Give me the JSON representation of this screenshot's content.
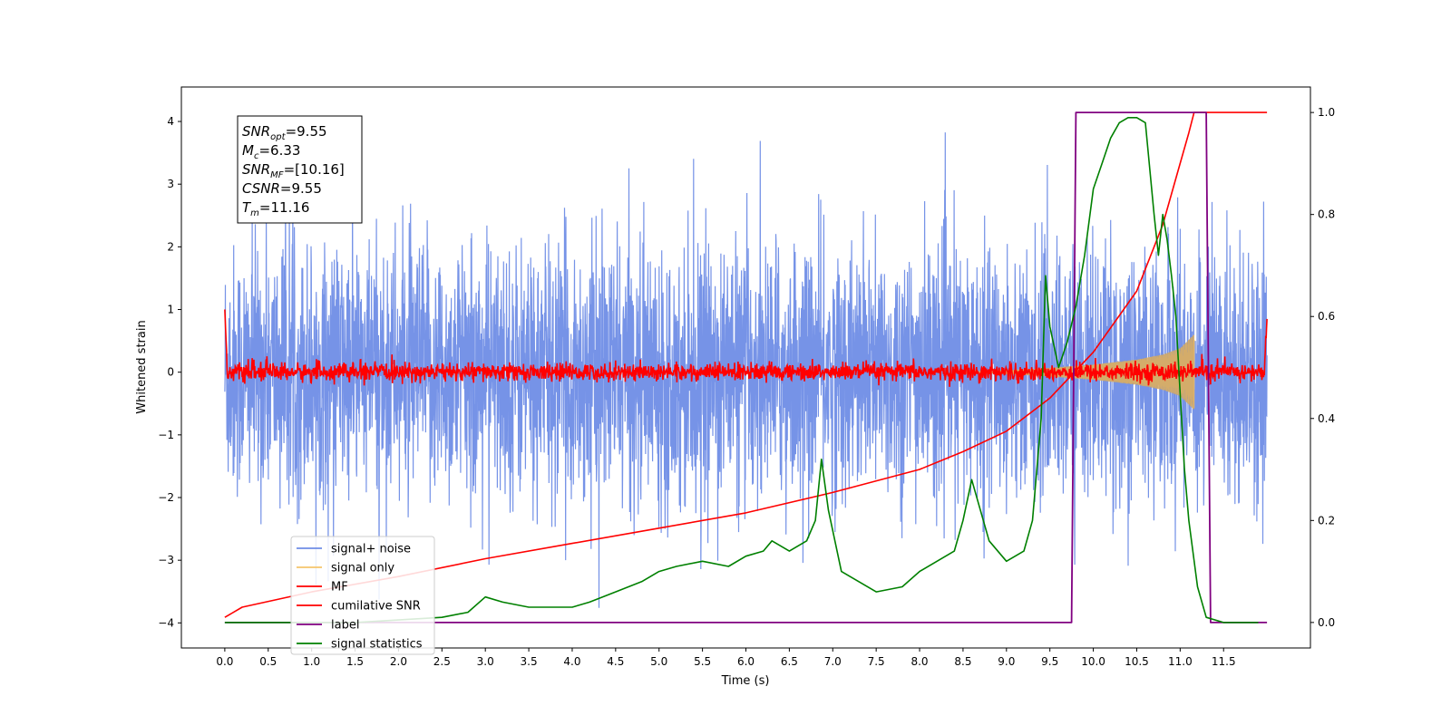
{
  "chart_data": {
    "type": "line",
    "xlabel": "Time (s)",
    "ylabel": "Whitened strain",
    "xlim": [
      -0.5,
      12.5
    ],
    "ylim": [
      -4.4,
      4.55
    ],
    "y2lim": [
      -0.05,
      1.05
    ],
    "x_ticks": [
      "0.0",
      "0.5",
      "1.0",
      "1.5",
      "2.0",
      "2.5",
      "3.0",
      "3.5",
      "4.0",
      "4.5",
      "5.0",
      "5.5",
      "6.0",
      "6.5",
      "7.0",
      "7.5",
      "8.0",
      "8.5",
      "9.0",
      "9.5",
      "10.0",
      "10.5",
      "11.0",
      "11.5"
    ],
    "y_ticks": [
      "−4",
      "−3",
      "−2",
      "−1",
      "0",
      "1",
      "2",
      "3",
      "4"
    ],
    "y2_ticks": [
      "0.0",
      "0.2",
      "0.4",
      "0.6",
      "0.8",
      "1.0"
    ],
    "annotation": {
      "lines": [
        {
          "sym": "SNR",
          "sub": "opt",
          "text": "=9.55"
        },
        {
          "sym": "M",
          "sub": "c",
          "text": "=6.33"
        },
        {
          "sym": "SNR",
          "sub": "MF",
          "text": "=[10.16]"
        },
        {
          "sym": "CSNR",
          "sub": "",
          "text": "=9.55"
        },
        {
          "sym": "T",
          "sub": "m",
          "text": "=11.16"
        }
      ]
    },
    "legend": {
      "placement": "lower-left",
      "entries": [
        {
          "label": "signal+ noise",
          "color": "#6f8de6"
        },
        {
          "label": "signal only",
          "color": "#f5c46b"
        },
        {
          "label": "MF",
          "color": "#ff0000"
        },
        {
          "label": "cumilative SNR",
          "color": "#ff0000"
        },
        {
          "label": "label",
          "color": "#800080"
        },
        {
          "label": "signal statistics",
          "color": "#008000"
        }
      ]
    },
    "series": [
      {
        "name": "signal+ noise",
        "axis": "left",
        "color": "#6f8de6",
        "x_range": [
          0.0,
          12.0
        ],
        "envelope": [
          -2.6,
          2.6
        ],
        "peaks": [
          4.2,
          -4.0
        ]
      },
      {
        "name": "signal only",
        "axis": "left",
        "color": "#f5c46b",
        "x": [
          8.5,
          9.0,
          9.5,
          10.0,
          10.5,
          10.8,
          11.0,
          11.16
        ],
        "amplitude": [
          0.01,
          0.03,
          0.07,
          0.12,
          0.2,
          0.28,
          0.38,
          0.6
        ]
      },
      {
        "name": "MF",
        "axis": "left",
        "color": "#ff0000",
        "x_range": [
          0.0,
          12.0
        ],
        "envelope": [
          -0.15,
          0.2
        ],
        "ends": [
          1.0,
          0.85
        ]
      },
      {
        "name": "cumilative SNR",
        "axis": "right",
        "color": "#ff0000",
        "x": [
          0.0,
          0.2,
          1.0,
          2.0,
          3.0,
          4.0,
          5.0,
          6.0,
          7.0,
          8.0,
          8.5,
          9.0,
          9.5,
          10.0,
          10.5,
          10.8,
          11.0,
          11.1,
          11.16,
          12.0
        ],
        "y": [
          0.01,
          0.03,
          0.06,
          0.09,
          0.125,
          0.155,
          0.185,
          0.215,
          0.255,
          0.3,
          0.335,
          0.375,
          0.44,
          0.53,
          0.65,
          0.78,
          0.9,
          0.96,
          1.0,
          1.0
        ]
      },
      {
        "name": "label",
        "axis": "right",
        "color": "#800080",
        "x": [
          0.0,
          9.75,
          9.8,
          11.3,
          11.35,
          12.0
        ],
        "y": [
          0.0,
          0.0,
          1.0,
          1.0,
          0.0,
          0.0
        ]
      },
      {
        "name": "signal statistics",
        "axis": "right",
        "color": "#008000",
        "x": [
          0.0,
          0.5,
          1.0,
          1.5,
          2.0,
          2.5,
          2.8,
          3.0,
          3.2,
          3.5,
          3.8,
          4.0,
          4.2,
          4.5,
          4.8,
          5.0,
          5.2,
          5.5,
          5.8,
          6.0,
          6.2,
          6.3,
          6.5,
          6.7,
          6.8,
          6.87,
          6.95,
          7.1,
          7.3,
          7.5,
          7.8,
          8.0,
          8.2,
          8.4,
          8.5,
          8.6,
          8.8,
          9.0,
          9.2,
          9.3,
          9.4,
          9.45,
          9.5,
          9.6,
          9.7,
          9.8,
          9.9,
          10.0,
          10.1,
          10.2,
          10.3,
          10.4,
          10.5,
          10.6,
          10.7,
          10.75,
          10.8,
          10.85,
          10.9,
          10.95,
          11.0,
          11.05,
          11.1,
          11.2,
          11.3,
          11.5,
          11.6,
          11.9
        ],
        "y": [
          0.0,
          0.0,
          0.0,
          0.0,
          0.005,
          0.01,
          0.02,
          0.05,
          0.04,
          0.03,
          0.03,
          0.03,
          0.04,
          0.06,
          0.08,
          0.1,
          0.11,
          0.12,
          0.11,
          0.13,
          0.14,
          0.16,
          0.14,
          0.16,
          0.2,
          0.32,
          0.22,
          0.1,
          0.08,
          0.06,
          0.07,
          0.1,
          0.12,
          0.14,
          0.2,
          0.28,
          0.16,
          0.12,
          0.14,
          0.2,
          0.4,
          0.68,
          0.58,
          0.5,
          0.55,
          0.62,
          0.72,
          0.85,
          0.9,
          0.95,
          0.98,
          0.99,
          0.99,
          0.98,
          0.8,
          0.72,
          0.8,
          0.75,
          0.68,
          0.6,
          0.45,
          0.3,
          0.2,
          0.07,
          0.01,
          0.0,
          0.0,
          0.0
        ]
      }
    ]
  }
}
